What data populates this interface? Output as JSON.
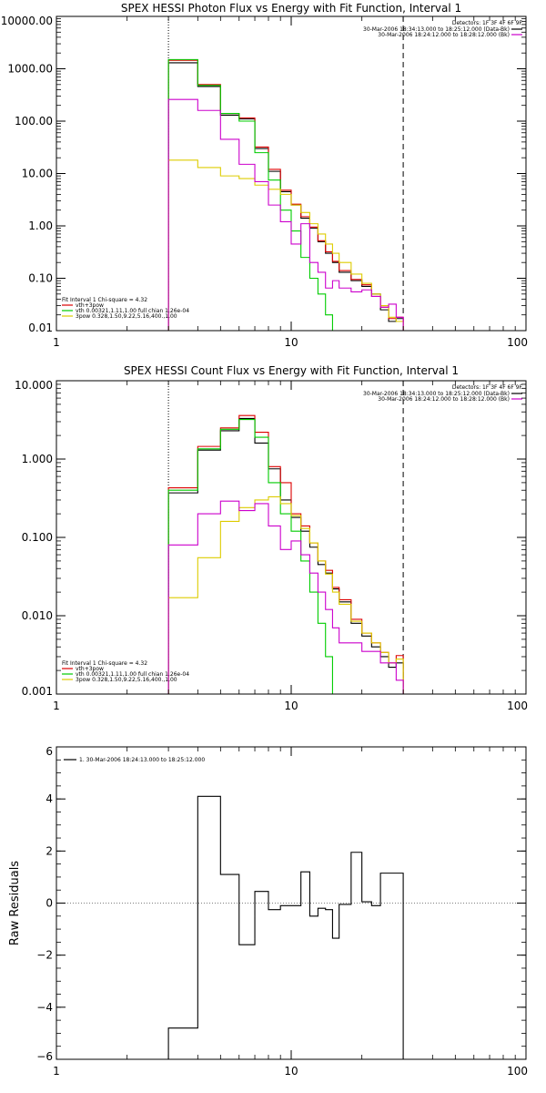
{
  "chart_data": [
    {
      "type": "line",
      "title": "SPEX HESSI Photon Flux vs Energy with Fit Function, Interval 1",
      "x_scale": "log",
      "y_scale": "log",
      "xlim": [
        1,
        100
      ],
      "ylim": [
        0.01,
        10000
      ],
      "x_ticks": [
        "1",
        "10",
        "100"
      ],
      "y_ticks": [
        "0.01",
        "0.10",
        "1.00",
        "10.00",
        "100.00",
        "1000.00",
        "10000.00"
      ],
      "x_tick_values": [
        1,
        10,
        100
      ],
      "y_tick_values": [
        0.01,
        0.1,
        1,
        10,
        100,
        1000,
        10000
      ],
      "xlabel": "",
      "ylabel": "",
      "vline_dotted": 3,
      "vline_dashed": 30,
      "bin_edges": [
        3,
        4,
        5,
        6,
        7,
        8,
        9,
        10,
        11,
        12,
        13,
        14,
        15,
        16,
        18,
        20,
        22,
        24,
        26,
        28,
        30
      ],
      "legend_top": {
        "header": "Detectors: 1F 3F 4F 6F 9F",
        "entries": [
          {
            "label": "30-Mar-2006 18:34:13.000 to 18:25:12.000 (Data-Bk)",
            "color": "#000000"
          },
          {
            "label": "30-Mar-2006 18:24:12.000 to 18:28:12.000 (Bk)",
            "color": "#cc00cc"
          }
        ]
      },
      "legend_bottom": {
        "header": "Fit Interval 1    Chi-square = 4.32",
        "entries": [
          {
            "label": "vth+3pow",
            "color": "#dd0000"
          },
          {
            "label": "vth 0.00321,1.11,1.00   full chian 1.26e-04",
            "color": "#00cc00"
          },
          {
            "label": "3pow 0.328,1.50,9.22,5.16,400.,1.00",
            "color": "#ddcc00"
          }
        ]
      },
      "series": [
        {
          "color": "#000000",
          "values": [
            1300,
            460,
            130,
            110,
            30,
            11,
            4.5,
            2.5,
            1.4,
            0.9,
            0.5,
            0.3,
            0.2,
            0.13,
            0.09,
            0.07,
            0.05,
            0.025,
            0.015,
            0.017
          ]
        },
        {
          "color": "#dd0000",
          "values": [
            1450,
            500,
            140,
            115,
            32,
            12,
            4.8,
            2.6,
            1.5,
            0.95,
            0.52,
            0.32,
            0.21,
            0.14,
            0.095,
            0.075,
            0.045,
            0.028,
            0.017,
            0.018
          ]
        },
        {
          "color": "#00cc00",
          "values": [
            1500,
            480,
            140,
            100,
            25,
            7.5,
            2.0,
            0.8,
            0.25,
            0.1,
            0.05,
            0.02,
            0.01
          ]
        },
        {
          "color": "#ddcc00",
          "values": [
            18,
            13,
            9,
            8,
            6,
            5,
            4,
            2.5,
            1.8,
            1.1,
            0.7,
            0.45,
            0.3,
            0.2,
            0.12,
            0.08,
            0.05,
            0.03,
            0.018,
            0.015
          ]
        },
        {
          "color": "#cc00cc",
          "values": [
            260,
            160,
            45,
            15,
            7,
            2.5,
            1.2,
            0.45,
            1.1,
            0.2,
            0.13,
            0.065,
            0.09,
            0.065,
            0.055,
            0.06,
            0.045,
            0.028,
            0.032,
            0.018
          ]
        }
      ]
    },
    {
      "type": "line",
      "title": "SPEX HESSI Count Flux vs Energy with Fit Function, Interval 1",
      "x_scale": "log",
      "y_scale": "log",
      "xlim": [
        1,
        100
      ],
      "ylim": [
        0.001,
        10
      ],
      "x_ticks": [
        "1",
        "10",
        "100"
      ],
      "y_ticks": [
        "0.001",
        "0.010",
        "0.100",
        "1.000",
        "10.000"
      ],
      "x_tick_values": [
        1,
        10,
        100
      ],
      "y_tick_values": [
        0.001,
        0.01,
        0.1,
        1,
        10
      ],
      "xlabel": "",
      "ylabel": "",
      "vline_dotted": 3,
      "vline_dashed": 30,
      "bin_edges": [
        3,
        4,
        5,
        6,
        7,
        8,
        9,
        10,
        11,
        12,
        13,
        14,
        15,
        16,
        18,
        20,
        22,
        24,
        26,
        28,
        30
      ],
      "legend_top": {
        "header": "Detectors: 1F 3F 4F 6F 9F",
        "entries": [
          {
            "label": "30-Mar-2006 18:34:13.000 to 18:25:12.000 (Data-Bk)",
            "color": "#000000"
          },
          {
            "label": "30-Mar-2006 18:24:12.000 to 18:28:12.000 (Bk)",
            "color": "#cc00cc"
          }
        ]
      },
      "legend_bottom": {
        "header": "Fit Interval 1    Chi-square = 4.32",
        "entries": [
          {
            "label": "vth+3pow",
            "color": "#dd0000"
          },
          {
            "label": "vth 0.00321,1.11,1.00   full chian 1.26e-04",
            "color": "#00cc00"
          },
          {
            "label": "3pow 0.328,1.50,9.22,5.16,400.,1.00",
            "color": "#ddcc00"
          }
        ]
      },
      "series": [
        {
          "color": "#000000",
          "values": [
            0.37,
            1.3,
            2.3,
            3.3,
            1.6,
            0.75,
            0.3,
            0.18,
            0.12,
            0.075,
            0.045,
            0.035,
            0.022,
            0.015,
            0.008,
            0.0055,
            0.004,
            0.003,
            0.0022,
            0.0025
          ]
        },
        {
          "color": "#dd0000",
          "values": [
            0.43,
            1.45,
            2.5,
            3.6,
            2.2,
            0.8,
            0.5,
            0.2,
            0.14,
            0.085,
            0.05,
            0.038,
            0.023,
            0.016,
            0.009,
            0.006,
            0.0045,
            0.0034,
            0.0025,
            0.0031
          ]
        },
        {
          "color": "#00cc00",
          "values": [
            0.4,
            1.35,
            2.4,
            3.2,
            1.9,
            0.5,
            0.2,
            0.12,
            0.05,
            0.02,
            0.008,
            0.003,
            0.001
          ]
        },
        {
          "color": "#ddcc00",
          "values": [
            0.017,
            0.055,
            0.16,
            0.24,
            0.3,
            0.33,
            0.27,
            0.19,
            0.13,
            0.085,
            0.05,
            0.034,
            0.02,
            0.014,
            0.0085,
            0.006,
            0.0045,
            0.0034,
            0.0025,
            0.0028
          ]
        },
        {
          "color": "#cc00cc",
          "values": [
            0.08,
            0.2,
            0.29,
            0.22,
            0.27,
            0.14,
            0.07,
            0.09,
            0.06,
            0.035,
            0.02,
            0.012,
            0.007,
            0.0045,
            0.0045,
            0.0035,
            0.0035,
            0.0025,
            0.0025,
            0.0015
          ]
        }
      ]
    },
    {
      "type": "line",
      "title": "",
      "x_scale": "log",
      "y_scale": "linear",
      "xlim": [
        1,
        100
      ],
      "ylim": [
        -6,
        6
      ],
      "x_ticks": [
        "1",
        "10",
        "100"
      ],
      "y_ticks": [
        "−6",
        "−4",
        "−2",
        "0",
        "2",
        "4",
        "6"
      ],
      "x_tick_values": [
        1,
        10,
        100
      ],
      "y_tick_values": [
        -6,
        -4,
        -2,
        0,
        2,
        4,
        6
      ],
      "xlabel": "",
      "ylabel": "Raw Residuals",
      "zero_line": true,
      "bin_edges": [
        3,
        4,
        5,
        6,
        7,
        8,
        9,
        10,
        11,
        12,
        13,
        14,
        15,
        16,
        18,
        20,
        22,
        24,
        26,
        28,
        30
      ],
      "legend_top": {
        "header": "",
        "entries": [
          {
            "label": "1. 30-Mar-2006 18:24:13.000 to 18:25:12.000",
            "color": "#000000"
          }
        ]
      },
      "series": [
        {
          "color": "#000000",
          "values": [
            -4.8,
            4.1,
            1.1,
            -1.6,
            0.45,
            -0.25,
            -0.1,
            -0.1,
            1.2,
            -0.5,
            -0.2,
            -0.25,
            -1.35,
            -0.05,
            1.95,
            0.05,
            -0.1,
            1.15,
            1.15,
            1.15
          ]
        }
      ]
    }
  ]
}
